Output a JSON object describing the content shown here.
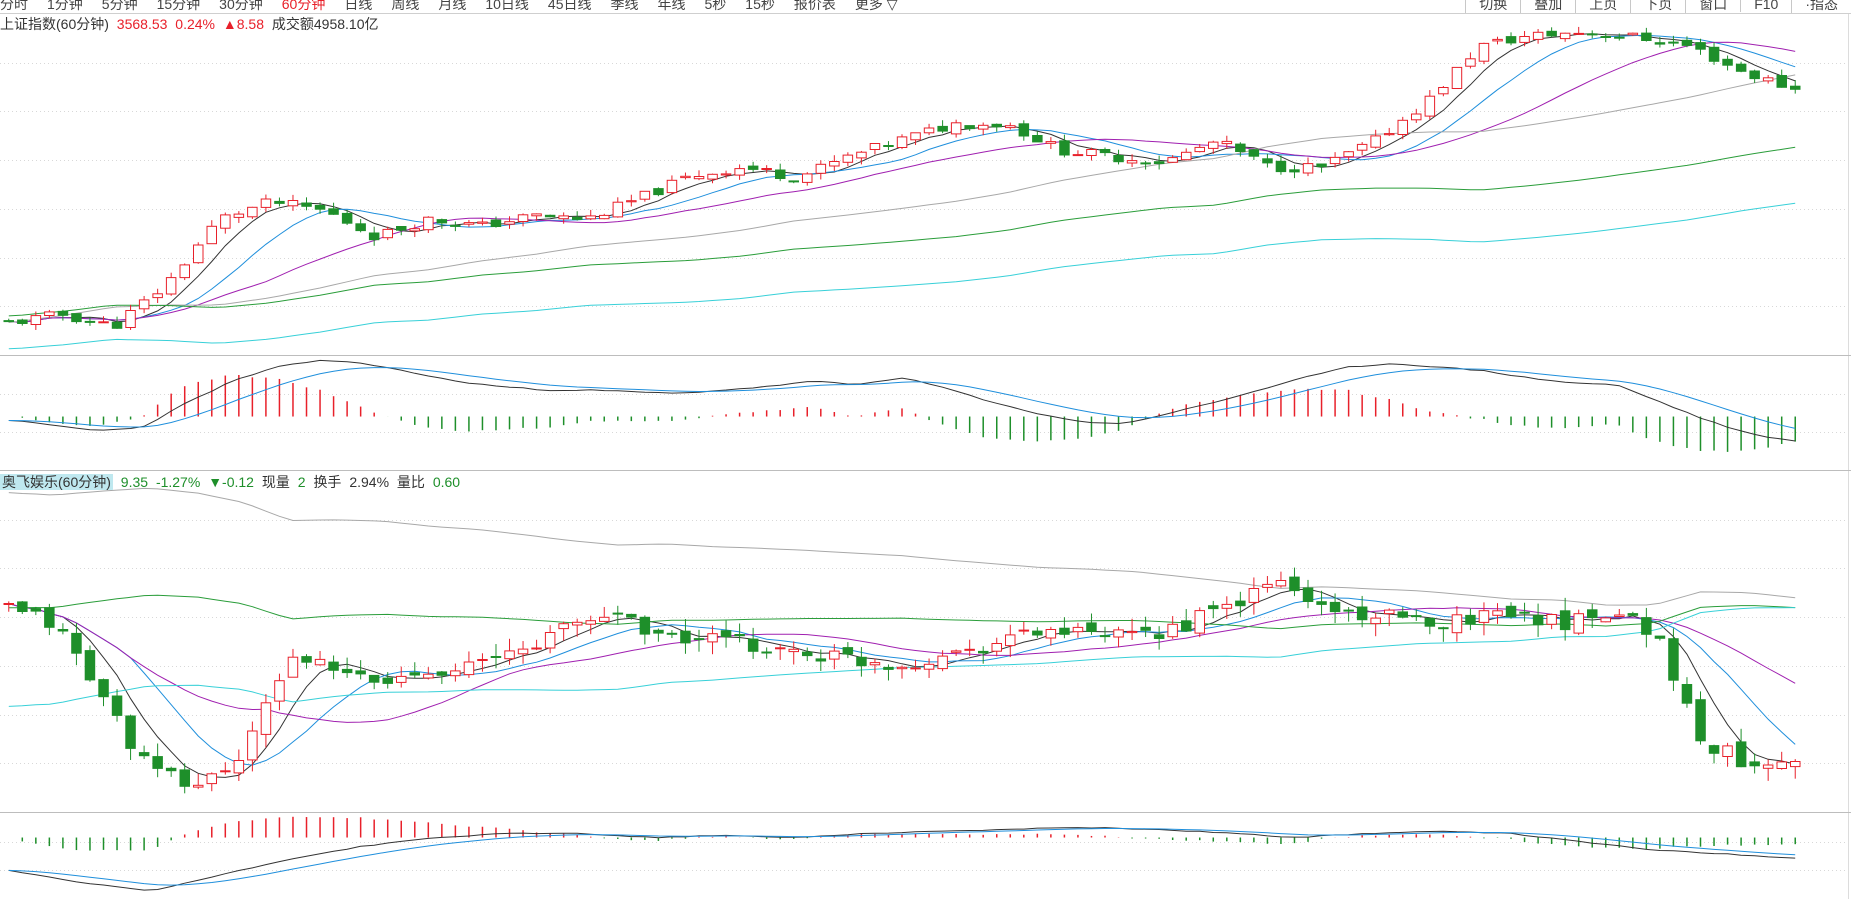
{
  "toolbar": {
    "periods": [
      {
        "label": "分时",
        "active": false
      },
      {
        "label": "1分钟",
        "active": false
      },
      {
        "label": "5分钟",
        "active": false
      },
      {
        "label": "15分钟",
        "active": false
      },
      {
        "label": "30分钟",
        "active": false
      },
      {
        "label": "60分钟",
        "active": true
      },
      {
        "label": "日线",
        "active": false
      },
      {
        "label": "周线",
        "active": false
      },
      {
        "label": "月线",
        "active": false
      },
      {
        "label": "10日线",
        "active": false
      },
      {
        "label": "45日线",
        "active": false
      },
      {
        "label": "季线",
        "active": false
      },
      {
        "label": "年线",
        "active": false
      },
      {
        "label": "5秒",
        "active": false
      },
      {
        "label": "15秒",
        "active": false
      },
      {
        "label": "报价表",
        "active": false
      },
      {
        "label": "更多 ▽",
        "active": false
      }
    ],
    "tools": [
      "切换",
      "叠加",
      "上页",
      "下页",
      "窗口",
      "F10",
      "·指态"
    ]
  },
  "index_info": {
    "name": "上证指数(60分钟)",
    "price": "3568.53",
    "change_pct": "0.24%",
    "change": "▲8.58",
    "turnover_label": "成交额",
    "turnover_value": "4958.10亿"
  },
  "stock_info": {
    "name": "奥飞娱乐(60分钟)",
    "price": "9.35",
    "change_pct": "-1.27%",
    "change": "▼-0.12",
    "volume_label": "现量",
    "volume_value": "2",
    "turnover_rate_label": "换手",
    "turnover_rate_value": "2.94%",
    "volume_ratio_label": "量比",
    "volume_ratio_value": "0.60"
  },
  "colors": {
    "up": "#e8202a",
    "down": "#1e8f2a",
    "ma5": "#333333",
    "ma10": "#1f8fdc",
    "ma20": "#a020b0",
    "ma60": "#a8a8a8",
    "ma120": "#2a9d3a",
    "ma250": "#38d0d8",
    "grid": "#d8d8d8"
  },
  "chart_data": [
    {
      "type": "candlestick",
      "panel": "index",
      "series_count": 133,
      "trend_points": [
        3440,
        3445,
        3438,
        3462,
        3500,
        3510,
        3505,
        3490,
        3500,
        3496,
        3502,
        3500,
        3512,
        3525,
        3530,
        3524,
        3536,
        3546,
        3555,
        3555,
        3540,
        3536,
        3533,
        3545,
        3530,
        3530,
        3545,
        3568,
        3600,
        3606,
        3608,
        3605,
        3600,
        3585,
        3575
      ],
      "ylim": [
        3425,
        3615
      ],
      "ma_lines": [
        "MA5",
        "MA10",
        "MA20",
        "MA60",
        "MA120",
        "MA250"
      ]
    },
    {
      "type": "macd",
      "panel": "index_macd",
      "dif_points": [
        -2,
        -5,
        -8,
        -6,
        8,
        20,
        28,
        32,
        30,
        25,
        20,
        17,
        15,
        15,
        14,
        13,
        15,
        17,
        20,
        18,
        22,
        16,
        8,
        2,
        -3,
        -4,
        2,
        8,
        15,
        22,
        28,
        30,
        28,
        26,
        22,
        19,
        18,
        8,
        -2,
        -10,
        -14
      ],
      "ylim": [
        -28,
        32
      ]
    },
    {
      "type": "candlestick",
      "panel": "stock",
      "series_count": 133,
      "trend_points": [
        9.85,
        9.8,
        9.55,
        9.3,
        9.25,
        9.35,
        9.7,
        9.63,
        9.6,
        9.65,
        9.66,
        9.72,
        9.8,
        9.84,
        9.75,
        9.75,
        9.72,
        9.7,
        9.68,
        9.66,
        9.7,
        9.74,
        9.78,
        9.76,
        9.75,
        9.8,
        9.86,
        9.95,
        9.85,
        9.83,
        9.8,
        9.82,
        9.85,
        9.8,
        9.85,
        9.78,
        9.4,
        9.33,
        9.35
      ],
      "ylim": [
        9.18,
        10.3
      ],
      "ma_lines": [
        "MA5",
        "MA10",
        "MA20",
        "MA60",
        "MA120",
        "MA250"
      ]
    },
    {
      "type": "macd",
      "panel": "stock_macd",
      "dif_points": [
        -0.08,
        -0.11,
        -0.13,
        -0.09,
        -0.05,
        -0.02,
        0,
        0.01,
        0.01,
        0,
        0.005,
        0,
        0.01,
        0.015,
        0.02,
        0.025,
        0.02,
        0.012,
        0,
        0.01,
        0.015,
        0.01,
        -0.01,
        -0.03,
        -0.04,
        -0.05
      ],
      "ylim": [
        -0.14,
        0.05
      ]
    }
  ]
}
